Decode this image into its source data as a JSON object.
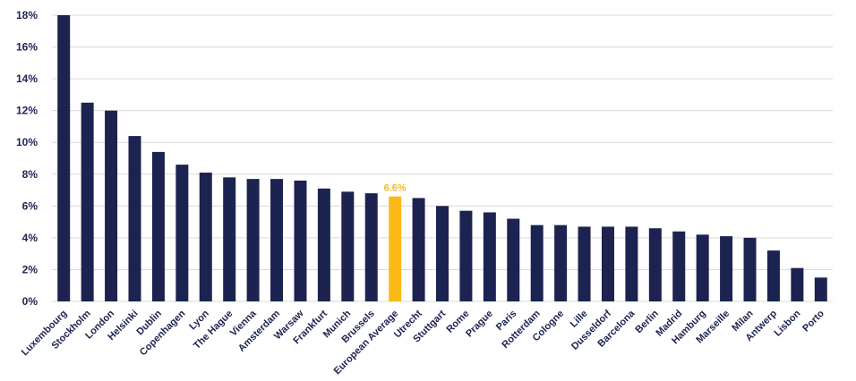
{
  "chart_data": {
    "type": "bar",
    "categories": [
      "Luxembourg",
      "Stockholm",
      "London",
      "Helsinki",
      "Dublin",
      "Copenhagen",
      "Lyon",
      "The Hague",
      "Vienna",
      "Amsterdam",
      "Warsaw",
      "Frankfurt",
      "Munich",
      "Brussels",
      "European Average",
      "Utrecht",
      "Stuttgart",
      "Rome",
      "Prague",
      "Paris",
      "Rotterdam",
      "Cologne",
      "Lille",
      "Dusseldorf",
      "Barcelona",
      "Berlin",
      "Madrid",
      "Hamburg",
      "Marseille",
      "Milan",
      "Antwerp",
      "Lisbon",
      "Porto"
    ],
    "values": [
      18.0,
      12.5,
      12.0,
      10.4,
      9.4,
      8.6,
      8.1,
      7.8,
      7.7,
      7.7,
      7.6,
      7.1,
      6.9,
      6.8,
      6.6,
      6.5,
      6.0,
      5.7,
      5.6,
      5.2,
      4.8,
      4.8,
      4.7,
      4.7,
      4.7,
      4.6,
      4.4,
      4.2,
      4.1,
      4.0,
      3.2,
      2.1,
      1.5
    ],
    "highlight_category": "European Average",
    "data_labels": [
      {
        "category": "European Average",
        "text": "6.6%"
      }
    ],
    "ylim": [
      0,
      18
    ],
    "yticks": [
      "0%",
      "2%",
      "4%",
      "6%",
      "8%",
      "10%",
      "12%",
      "14%",
      "16%",
      "18%"
    ],
    "ytick_values": [
      0,
      2,
      4,
      6,
      8,
      10,
      12,
      14,
      16,
      18
    ],
    "grid": true,
    "title": "",
    "xlabel": "",
    "ylabel": "",
    "colors": {
      "bar": "#1c2350",
      "highlight": "#fbb917",
      "grid": "#d9d9d9",
      "text": "#1c2350"
    }
  }
}
